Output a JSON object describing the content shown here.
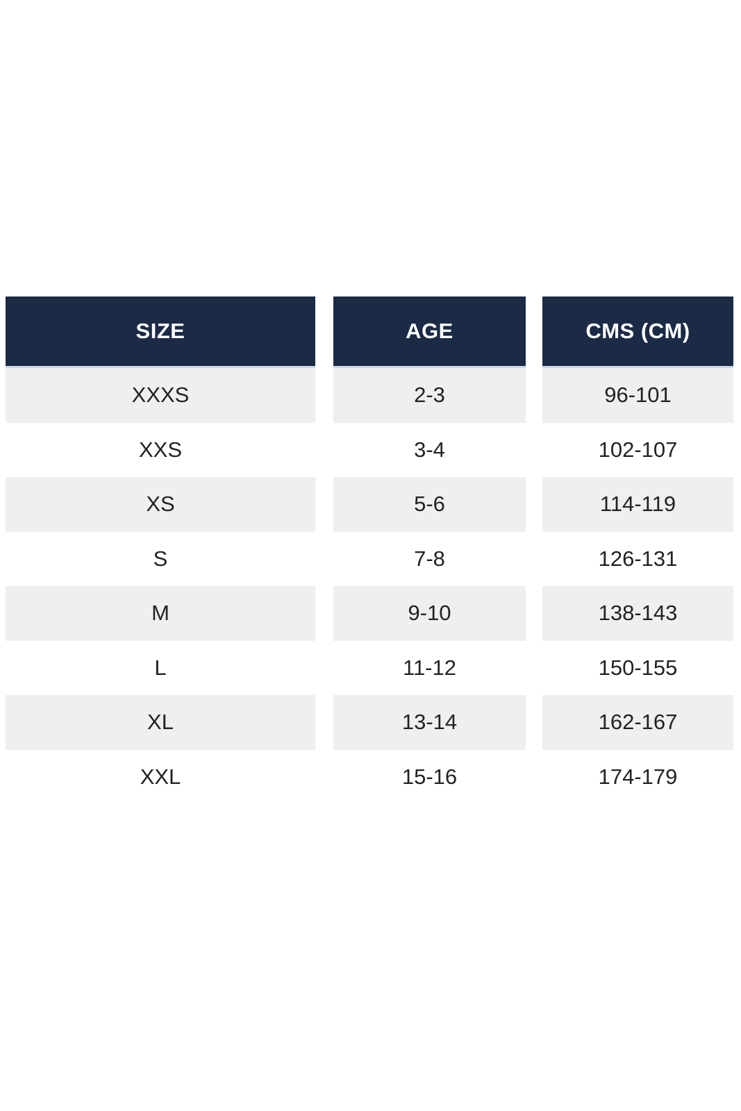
{
  "chart_data": {
    "type": "table",
    "columns": [
      "SIZE",
      "AGE",
      "CMS (CM)"
    ],
    "rows": [
      [
        "XXXS",
        "2-3",
        "96-101"
      ],
      [
        "XXS",
        "3-4",
        "102-107"
      ],
      [
        "XS",
        "5-6",
        "114-119"
      ],
      [
        "S",
        "7-8",
        "126-131"
      ],
      [
        "M",
        "9-10",
        "138-143"
      ],
      [
        "L",
        "11-12",
        "150-155"
      ],
      [
        "XL",
        "13-14",
        "162-167"
      ],
      [
        "XXL",
        "15-16",
        "174-179"
      ]
    ],
    "layout_hints": {
      "striped_rows": "odd rows shaded",
      "column_alignment": "center",
      "three_separate_column_blocks": true
    }
  },
  "colors": {
    "header_bg": "#1b2a45",
    "header_text": "#ffffff",
    "header_border": "#ccd6e2",
    "row_alt_bg": "#efefef",
    "row_bg": "#ffffff",
    "cell_text": "#222222"
  }
}
